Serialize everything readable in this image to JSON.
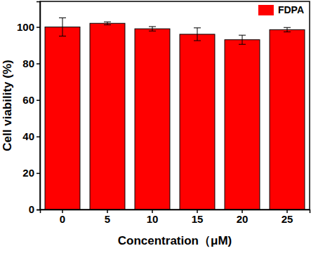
{
  "chart_data": {
    "type": "bar",
    "x_label": "Concentration（μM)",
    "y_label": "Cell viability (%)",
    "categories": [
      "0",
      "5",
      "10",
      "15",
      "20",
      "25"
    ],
    "series": [
      {
        "name": "FDPA",
        "color": "#ff0000",
        "values": [
          100,
          102,
          99,
          96,
          93,
          98.5
        ],
        "errors": [
          5,
          0.8,
          1.2,
          3.5,
          2.5,
          1.2
        ]
      }
    ],
    "ylim": [
      0,
      114
    ],
    "yticks": [
      0,
      20,
      40,
      60,
      80,
      100
    ],
    "legend": "upper right"
  }
}
